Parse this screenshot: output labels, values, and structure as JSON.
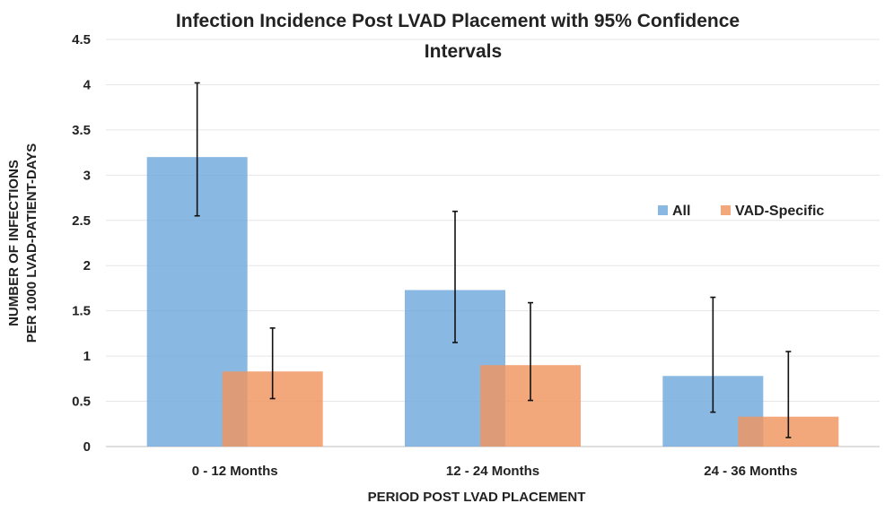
{
  "chart_data": {
    "type": "bar",
    "title_lines": [
      "Infection Incidence Post LVAD Placement with 95% Confidence",
      "Intervals"
    ],
    "xlabel": "PERIOD POST LVAD PLACEMENT",
    "ylabel_lines": [
      "NUMBER OF INFECTIONS",
      "PER 1000 LVAD-PATIENT-DAYS"
    ],
    "categories": [
      "0 - 12 Months",
      "12 - 24 Months",
      "24 - 36 Months"
    ],
    "ylim": [
      0,
      4.5
    ],
    "yticks": [
      "0",
      "0.5",
      "1",
      "1.5",
      "2",
      "2.5",
      "3",
      "3.5",
      "4",
      "4.5"
    ],
    "grid": true,
    "legend_position": "right",
    "series": [
      {
        "name": "All",
        "color": "#6fa8dc",
        "values": [
          3.2,
          1.73,
          0.78
        ],
        "ci_low": [
          2.55,
          1.15,
          0.38
        ],
        "ci_high": [
          4.02,
          2.6,
          1.65
        ]
      },
      {
        "name": "VAD-Specific",
        "color": "#f0955f",
        "values": [
          0.83,
          0.9,
          0.33
        ],
        "ci_low": [
          0.53,
          0.51,
          0.1
        ],
        "ci_high": [
          1.31,
          1.59,
          1.05
        ]
      }
    ]
  }
}
